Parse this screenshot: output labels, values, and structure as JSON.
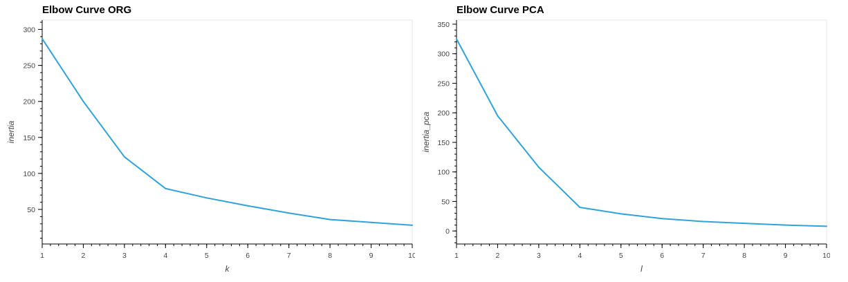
{
  "colors": {
    "line": "#30a2da",
    "frame": "#e5e5e5",
    "axis": "#000000",
    "text": "#444444"
  },
  "chart_data": [
    {
      "type": "line",
      "title": "Elbow Curve ORG",
      "xlabel": "k",
      "ylabel": "inertia",
      "x": [
        1,
        2,
        3,
        4,
        5,
        6,
        7,
        8,
        9,
        10
      ],
      "series": [
        {
          "values": [
            287,
            200,
            123,
            79,
            66,
            55,
            45,
            36,
            32,
            28
          ]
        }
      ],
      "xlim": [
        1,
        10
      ],
      "ylim": [
        2,
        313
      ],
      "xticks": [
        1,
        2,
        3,
        4,
        5,
        6,
        7,
        8,
        9,
        10
      ],
      "yticks": [
        50,
        100,
        150,
        200,
        250,
        300
      ],
      "grid": false,
      "legend": "none"
    },
    {
      "type": "line",
      "title": "Elbow Curve PCA",
      "xlabel": "l",
      "ylabel": "inertia_pca",
      "x": [
        1,
        2,
        3,
        4,
        5,
        6,
        7,
        8,
        9,
        10
      ],
      "series": [
        {
          "values": [
            325,
            195,
            108,
            40,
            29,
            21,
            16,
            13,
            10,
            8
          ]
        }
      ],
      "xlim": [
        1,
        10
      ],
      "ylim": [
        -22,
        357
      ],
      "xticks": [
        1,
        2,
        3,
        4,
        5,
        6,
        7,
        8,
        9,
        10
      ],
      "yticks": [
        0,
        50,
        100,
        150,
        200,
        250,
        300,
        350
      ],
      "grid": false,
      "legend": "none"
    }
  ]
}
